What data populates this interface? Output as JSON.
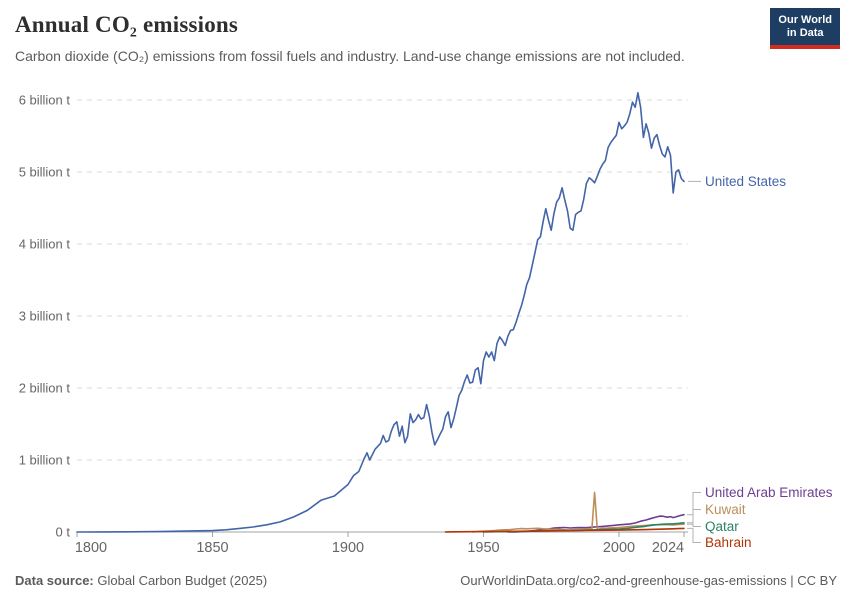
{
  "header": {
    "title": "Annual CO₂ emissions",
    "subtitle": "Carbon dioxide (CO₂) emissions from fossil fuels and industry. Land-use change emissions are not included."
  },
  "logo": {
    "line1": "Our World",
    "line2": "in Data",
    "bg_color": "#1d3d63",
    "bar_color": "#d42b21"
  },
  "footer": {
    "source_label": "Data source:",
    "source_value": "Global Carbon Budget (2025)",
    "credit": "OurWorldinData.org/co2-and-greenhouse-gas-emissions | CC BY"
  },
  "chart_data": {
    "type": "line",
    "title": "Annual CO₂ emissions",
    "xlabel": "",
    "ylabel": "",
    "unit": "billion tonnes of CO₂",
    "grid": "horizontal-dashed",
    "legend_position": "right-end-labels",
    "xlim": [
      1800,
      2024
    ],
    "ylim": [
      0,
      6.2
    ],
    "x_ticks": [
      1800,
      1850,
      1900,
      1950,
      2000,
      2024
    ],
    "y_ticks": [
      {
        "value": 0,
        "label": "0 t"
      },
      {
        "value": 1,
        "label": "1 billion t"
      },
      {
        "value": 2,
        "label": "2 billion t"
      },
      {
        "value": 3,
        "label": "3 billion t"
      },
      {
        "value": 4,
        "label": "4 billion t"
      },
      {
        "value": 5,
        "label": "5 billion t"
      },
      {
        "value": 6,
        "label": "6 billion t"
      }
    ],
    "series": [
      {
        "name": "United States",
        "color": "#4365a8",
        "points": [
          [
            1800,
            0.0003
          ],
          [
            1810,
            0.001
          ],
          [
            1820,
            0.003
          ],
          [
            1830,
            0.006
          ],
          [
            1840,
            0.012
          ],
          [
            1850,
            0.02
          ],
          [
            1855,
            0.03
          ],
          [
            1860,
            0.05
          ],
          [
            1865,
            0.07
          ],
          [
            1870,
            0.1
          ],
          [
            1875,
            0.14
          ],
          [
            1880,
            0.21
          ],
          [
            1885,
            0.3
          ],
          [
            1890,
            0.44
          ],
          [
            1895,
            0.5
          ],
          [
            1900,
            0.66
          ],
          [
            1902,
            0.78
          ],
          [
            1904,
            0.84
          ],
          [
            1906,
            1.02
          ],
          [
            1907,
            1.1
          ],
          [
            1908,
            1.0
          ],
          [
            1910,
            1.15
          ],
          [
            1912,
            1.23
          ],
          [
            1913,
            1.34
          ],
          [
            1914,
            1.25
          ],
          [
            1915,
            1.27
          ],
          [
            1916,
            1.4
          ],
          [
            1917,
            1.49
          ],
          [
            1918,
            1.53
          ],
          [
            1919,
            1.33
          ],
          [
            1920,
            1.47
          ],
          [
            1921,
            1.24
          ],
          [
            1922,
            1.33
          ],
          [
            1923,
            1.64
          ],
          [
            1924,
            1.52
          ],
          [
            1925,
            1.56
          ],
          [
            1926,
            1.63
          ],
          [
            1927,
            1.57
          ],
          [
            1928,
            1.59
          ],
          [
            1929,
            1.77
          ],
          [
            1930,
            1.61
          ],
          [
            1931,
            1.38
          ],
          [
            1932,
            1.21
          ],
          [
            1933,
            1.28
          ],
          [
            1934,
            1.36
          ],
          [
            1935,
            1.43
          ],
          [
            1936,
            1.6
          ],
          [
            1937,
            1.67
          ],
          [
            1938,
            1.45
          ],
          [
            1939,
            1.57
          ],
          [
            1940,
            1.73
          ],
          [
            1941,
            1.9
          ],
          [
            1942,
            1.97
          ],
          [
            1943,
            2.09
          ],
          [
            1944,
            2.18
          ],
          [
            1945,
            2.07
          ],
          [
            1946,
            2.08
          ],
          [
            1947,
            2.25
          ],
          [
            1948,
            2.28
          ],
          [
            1949,
            2.06
          ],
          [
            1950,
            2.38
          ],
          [
            1951,
            2.5
          ],
          [
            1952,
            2.43
          ],
          [
            1953,
            2.5
          ],
          [
            1954,
            2.38
          ],
          [
            1955,
            2.62
          ],
          [
            1956,
            2.71
          ],
          [
            1957,
            2.66
          ],
          [
            1958,
            2.59
          ],
          [
            1959,
            2.72
          ],
          [
            1960,
            2.8
          ],
          [
            1961,
            2.81
          ],
          [
            1962,
            2.91
          ],
          [
            1963,
            3.03
          ],
          [
            1964,
            3.14
          ],
          [
            1965,
            3.28
          ],
          [
            1966,
            3.44
          ],
          [
            1967,
            3.53
          ],
          [
            1968,
            3.71
          ],
          [
            1969,
            3.88
          ],
          [
            1970,
            4.06
          ],
          [
            1971,
            4.1
          ],
          [
            1972,
            4.31
          ],
          [
            1973,
            4.49
          ],
          [
            1974,
            4.33
          ],
          [
            1975,
            4.19
          ],
          [
            1976,
            4.42
          ],
          [
            1977,
            4.58
          ],
          [
            1978,
            4.64
          ],
          [
            1979,
            4.78
          ],
          [
            1980,
            4.61
          ],
          [
            1981,
            4.46
          ],
          [
            1982,
            4.22
          ],
          [
            1983,
            4.19
          ],
          [
            1984,
            4.41
          ],
          [
            1985,
            4.44
          ],
          [
            1986,
            4.46
          ],
          [
            1987,
            4.62
          ],
          [
            1988,
            4.84
          ],
          [
            1989,
            4.92
          ],
          [
            1990,
            4.89
          ],
          [
            1991,
            4.85
          ],
          [
            1992,
            4.94
          ],
          [
            1993,
            5.04
          ],
          [
            1994,
            5.11
          ],
          [
            1995,
            5.16
          ],
          [
            1996,
            5.34
          ],
          [
            1997,
            5.41
          ],
          [
            1998,
            5.46
          ],
          [
            1999,
            5.51
          ],
          [
            2000,
            5.69
          ],
          [
            2001,
            5.6
          ],
          [
            2002,
            5.64
          ],
          [
            2003,
            5.69
          ],
          [
            2004,
            5.81
          ],
          [
            2005,
            5.97
          ],
          [
            2006,
            5.9
          ],
          [
            2007,
            6.1
          ],
          [
            2008,
            5.9
          ],
          [
            2009,
            5.48
          ],
          [
            2010,
            5.67
          ],
          [
            2011,
            5.54
          ],
          [
            2012,
            5.33
          ],
          [
            2013,
            5.47
          ],
          [
            2014,
            5.52
          ],
          [
            2015,
            5.37
          ],
          [
            2016,
            5.25
          ],
          [
            2017,
            5.21
          ],
          [
            2018,
            5.35
          ],
          [
            2019,
            5.23
          ],
          [
            2020,
            4.71
          ],
          [
            2021,
            5.0
          ],
          [
            2022,
            5.03
          ],
          [
            2023,
            4.91
          ],
          [
            2024,
            4.87
          ]
        ]
      },
      {
        "name": "United Arab Emirates",
        "color": "#6d3e91",
        "points": [
          [
            1959,
            0.0005
          ],
          [
            1962,
            0.002
          ],
          [
            1965,
            0.005
          ],
          [
            1967,
            0.012
          ],
          [
            1969,
            0.02
          ],
          [
            1970,
            0.026
          ],
          [
            1972,
            0.035
          ],
          [
            1974,
            0.042
          ],
          [
            1976,
            0.055
          ],
          [
            1978,
            0.06
          ],
          [
            1980,
            0.063
          ],
          [
            1982,
            0.055
          ],
          [
            1984,
            0.06
          ],
          [
            1986,
            0.063
          ],
          [
            1988,
            0.06
          ],
          [
            1990,
            0.066
          ],
          [
            1992,
            0.072
          ],
          [
            1994,
            0.078
          ],
          [
            1996,
            0.085
          ],
          [
            1998,
            0.092
          ],
          [
            2000,
            0.1
          ],
          [
            2002,
            0.106
          ],
          [
            2004,
            0.112
          ],
          [
            2006,
            0.125
          ],
          [
            2008,
            0.15
          ],
          [
            2010,
            0.167
          ],
          [
            2012,
            0.19
          ],
          [
            2014,
            0.21
          ],
          [
            2015,
            0.22
          ],
          [
            2016,
            0.221
          ],
          [
            2017,
            0.213
          ],
          [
            2018,
            0.205
          ],
          [
            2019,
            0.214
          ],
          [
            2020,
            0.2
          ],
          [
            2021,
            0.21
          ],
          [
            2022,
            0.222
          ],
          [
            2023,
            0.232
          ],
          [
            2024,
            0.24
          ]
        ]
      },
      {
        "name": "Kuwait",
        "color": "#bc8e5a",
        "points": [
          [
            1946,
            0.002
          ],
          [
            1948,
            0.006
          ],
          [
            1950,
            0.011
          ],
          [
            1952,
            0.015
          ],
          [
            1954,
            0.02
          ],
          [
            1956,
            0.026
          ],
          [
            1958,
            0.03
          ],
          [
            1960,
            0.034
          ],
          [
            1962,
            0.042
          ],
          [
            1964,
            0.047
          ],
          [
            1966,
            0.044
          ],
          [
            1968,
            0.048
          ],
          [
            1970,
            0.051
          ],
          [
            1972,
            0.045
          ],
          [
            1974,
            0.04
          ],
          [
            1976,
            0.035
          ],
          [
            1978,
            0.038
          ],
          [
            1980,
            0.031
          ],
          [
            1982,
            0.028
          ],
          [
            1984,
            0.034
          ],
          [
            1986,
            0.038
          ],
          [
            1988,
            0.042
          ],
          [
            1990,
            0.044
          ],
          [
            1991,
            0.55
          ],
          [
            1992,
            0.033
          ],
          [
            1993,
            0.046
          ],
          [
            1994,
            0.052
          ],
          [
            1996,
            0.056
          ],
          [
            1998,
            0.058
          ],
          [
            2000,
            0.062
          ],
          [
            2002,
            0.068
          ],
          [
            2004,
            0.078
          ],
          [
            2006,
            0.082
          ],
          [
            2008,
            0.086
          ],
          [
            2010,
            0.092
          ],
          [
            2012,
            0.098
          ],
          [
            2014,
            0.1
          ],
          [
            2016,
            0.102
          ],
          [
            2018,
            0.101
          ],
          [
            2020,
            0.099
          ],
          [
            2022,
            0.105
          ],
          [
            2024,
            0.108
          ]
        ]
      },
      {
        "name": "Qatar",
        "color": "#2c8465",
        "points": [
          [
            1950,
            0.001
          ],
          [
            1955,
            0.004
          ],
          [
            1960,
            0.006
          ],
          [
            1965,
            0.009
          ],
          [
            1970,
            0.013
          ],
          [
            1975,
            0.016
          ],
          [
            1980,
            0.018
          ],
          [
            1985,
            0.021
          ],
          [
            1990,
            0.029
          ],
          [
            1995,
            0.036
          ],
          [
            2000,
            0.042
          ],
          [
            2003,
            0.05
          ],
          [
            2005,
            0.06
          ],
          [
            2007,
            0.068
          ],
          [
            2009,
            0.075
          ],
          [
            2011,
            0.088
          ],
          [
            2013,
            0.098
          ],
          [
            2015,
            0.106
          ],
          [
            2017,
            0.11
          ],
          [
            2019,
            0.112
          ],
          [
            2020,
            0.113
          ],
          [
            2021,
            0.116
          ],
          [
            2022,
            0.12
          ],
          [
            2023,
            0.124
          ],
          [
            2024,
            0.128
          ]
        ]
      },
      {
        "name": "Bahrain",
        "color": "#b13507",
        "points": [
          [
            1936,
            0.001
          ],
          [
            1940,
            0.003
          ],
          [
            1945,
            0.004
          ],
          [
            1950,
            0.005
          ],
          [
            1955,
            0.007
          ],
          [
            1960,
            0.009
          ],
          [
            1965,
            0.011
          ],
          [
            1970,
            0.013
          ],
          [
            1975,
            0.016
          ],
          [
            1980,
            0.019
          ],
          [
            1985,
            0.021
          ],
          [
            1990,
            0.023
          ],
          [
            1995,
            0.025
          ],
          [
            2000,
            0.027
          ],
          [
            2005,
            0.03
          ],
          [
            2010,
            0.034
          ],
          [
            2015,
            0.039
          ],
          [
            2020,
            0.044
          ],
          [
            2022,
            0.047
          ],
          [
            2024,
            0.05
          ]
        ]
      }
    ]
  }
}
